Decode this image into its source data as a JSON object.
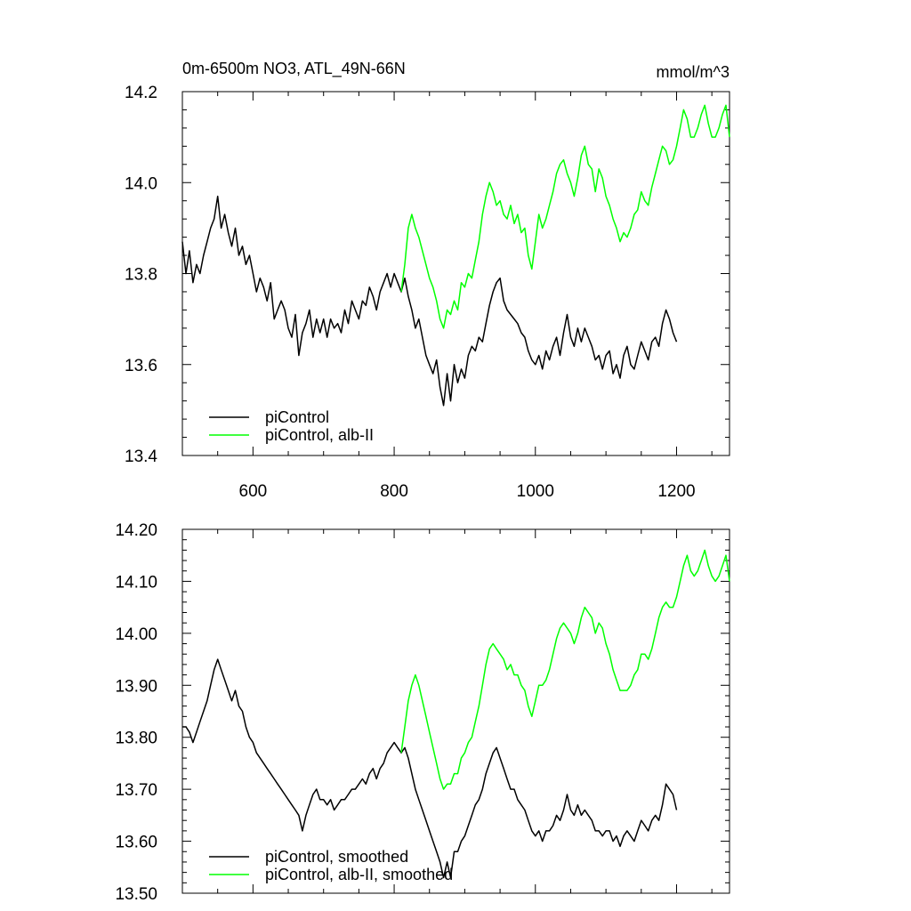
{
  "chart_data": [
    {
      "type": "line",
      "title": "0m-6500m NO3, ATL_49N-66N",
      "units": "mmol/m^3",
      "xlim": [
        500,
        1275
      ],
      "ylim": [
        13.4,
        14.2
      ],
      "xticks": [
        600,
        800,
        1000,
        1200
      ],
      "yticks": [
        13.4,
        13.6,
        13.8,
        14.0,
        14.2
      ],
      "ytick_labels": [
        "13.4",
        "13.6",
        "13.8",
        "14.0",
        "14.2"
      ],
      "grid": false,
      "legend_position": "bottom-left",
      "series": [
        {
          "name": "piControl",
          "color": "#000000",
          "x": [
            500,
            505,
            510,
            515,
            520,
            525,
            530,
            535,
            540,
            545,
            550,
            555,
            560,
            565,
            570,
            575,
            580,
            585,
            590,
            595,
            600,
            605,
            610,
            615,
            620,
            625,
            630,
            635,
            640,
            645,
            650,
            655,
            660,
            665,
            670,
            675,
            680,
            685,
            690,
            695,
            700,
            705,
            710,
            715,
            720,
            725,
            730,
            735,
            740,
            745,
            750,
            755,
            760,
            765,
            770,
            775,
            780,
            785,
            790,
            795,
            800,
            805,
            810,
            815,
            820,
            825,
            830,
            835,
            840,
            845,
            850,
            855,
            860,
            865,
            870,
            875,
            880,
            885,
            890,
            895,
            900,
            905,
            910,
            915,
            920,
            925,
            930,
            935,
            940,
            945,
            950,
            955,
            960,
            965,
            970,
            975,
            980,
            985,
            990,
            995,
            1000,
            1005,
            1010,
            1015,
            1020,
            1025,
            1030,
            1035,
            1040,
            1045,
            1050,
            1055,
            1060,
            1065,
            1070,
            1075,
            1080,
            1085,
            1090,
            1095,
            1100,
            1105,
            1110,
            1115,
            1120,
            1125,
            1130,
            1135,
            1140,
            1145,
            1150,
            1155,
            1160,
            1165,
            1170,
            1175,
            1180,
            1185,
            1190,
            1195,
            1200
          ],
          "y": [
            13.87,
            13.8,
            13.85,
            13.78,
            13.82,
            13.8,
            13.84,
            13.87,
            13.9,
            13.92,
            13.97,
            13.9,
            13.93,
            13.89,
            13.86,
            13.9,
            13.84,
            13.86,
            13.82,
            13.84,
            13.8,
            13.76,
            13.79,
            13.77,
            13.74,
            13.78,
            13.7,
            13.72,
            13.74,
            13.72,
            13.68,
            13.66,
            13.71,
            13.62,
            13.67,
            13.69,
            13.72,
            13.66,
            13.7,
            13.67,
            13.7,
            13.66,
            13.7,
            13.68,
            13.69,
            13.67,
            13.72,
            13.69,
            13.74,
            13.72,
            13.7,
            13.74,
            13.73,
            13.77,
            13.75,
            13.72,
            13.76,
            13.78,
            13.8,
            13.77,
            13.8,
            13.78,
            13.76,
            13.79,
            13.75,
            13.72,
            13.68,
            13.7,
            13.66,
            13.62,
            13.6,
            13.58,
            13.61,
            13.55,
            13.51,
            13.58,
            13.52,
            13.6,
            13.56,
            13.59,
            13.57,
            13.62,
            13.64,
            13.63,
            13.66,
            13.65,
            13.69,
            13.73,
            13.76,
            13.78,
            13.79,
            13.74,
            13.72,
            13.71,
            13.7,
            13.69,
            13.67,
            13.66,
            13.63,
            13.61,
            13.6,
            13.62,
            13.59,
            13.63,
            13.61,
            13.64,
            13.66,
            13.62,
            13.67,
            13.71,
            13.66,
            13.64,
            13.68,
            13.65,
            13.68,
            13.66,
            13.64,
            13.61,
            13.62,
            13.59,
            13.62,
            13.63,
            13.58,
            13.6,
            13.57,
            13.62,
            13.64,
            13.6,
            13.59,
            13.62,
            13.65,
            13.63,
            13.61,
            13.65,
            13.66,
            13.64,
            13.69,
            13.72,
            13.7,
            13.67,
            13.65
          ]
        },
        {
          "name": "piControl, alb-II",
          "color": "#00ff00",
          "x": [
            810,
            815,
            820,
            825,
            830,
            835,
            840,
            845,
            850,
            855,
            860,
            865,
            870,
            875,
            880,
            885,
            890,
            895,
            900,
            905,
            910,
            915,
            920,
            925,
            930,
            935,
            940,
            945,
            950,
            955,
            960,
            965,
            970,
            975,
            980,
            985,
            990,
            995,
            1000,
            1005,
            1010,
            1015,
            1020,
            1025,
            1030,
            1035,
            1040,
            1045,
            1050,
            1055,
            1060,
            1065,
            1070,
            1075,
            1080,
            1085,
            1090,
            1095,
            1100,
            1105,
            1110,
            1115,
            1120,
            1125,
            1130,
            1135,
            1140,
            1145,
            1150,
            1155,
            1160,
            1165,
            1170,
            1175,
            1180,
            1185,
            1190,
            1195,
            1200,
            1205,
            1210,
            1215,
            1220,
            1225,
            1230,
            1235,
            1240,
            1245,
            1250,
            1255,
            1260,
            1265,
            1270,
            1275
          ],
          "y": [
            13.76,
            13.82,
            13.9,
            13.93,
            13.9,
            13.88,
            13.85,
            13.82,
            13.79,
            13.77,
            13.74,
            13.7,
            13.68,
            13.72,
            13.71,
            13.74,
            13.72,
            13.78,
            13.77,
            13.8,
            13.79,
            13.83,
            13.87,
            13.93,
            13.97,
            14.0,
            13.98,
            13.95,
            13.96,
            13.93,
            13.92,
            13.95,
            13.91,
            13.93,
            13.89,
            13.9,
            13.84,
            13.81,
            13.87,
            13.93,
            13.9,
            13.92,
            13.95,
            13.98,
            14.02,
            14.04,
            14.05,
            14.02,
            14.0,
            13.97,
            14.01,
            14.06,
            14.08,
            14.04,
            14.03,
            13.98,
            14.03,
            14.01,
            13.97,
            13.95,
            13.92,
            13.9,
            13.87,
            13.89,
            13.88,
            13.9,
            13.93,
            13.94,
            13.98,
            13.96,
            13.95,
            13.99,
            14.02,
            14.05,
            14.08,
            14.07,
            14.04,
            14.05,
            14.08,
            14.12,
            14.16,
            14.14,
            14.1,
            14.1,
            14.12,
            14.15,
            14.17,
            14.13,
            14.1,
            14.1,
            14.12,
            14.15,
            14.17,
            14.1
          ]
        }
      ]
    },
    {
      "type": "line",
      "xlim": [
        500,
        1275
      ],
      "ylim": [
        13.5,
        14.2
      ],
      "xticks": [
        600,
        800,
        1000,
        1200
      ],
      "yticks": [
        13.5,
        13.6,
        13.7,
        13.8,
        13.9,
        14.0,
        14.1,
        14.2
      ],
      "ytick_labels": [
        "13.50",
        "13.60",
        "13.70",
        "13.80",
        "13.90",
        "14.00",
        "14.10",
        "14.20"
      ],
      "grid": false,
      "legend_position": "bottom-left",
      "series": [
        {
          "name": "piControl, smoothed",
          "color": "#000000",
          "x": [
            500,
            505,
            510,
            515,
            520,
            525,
            530,
            535,
            540,
            545,
            550,
            555,
            560,
            565,
            570,
            575,
            580,
            585,
            590,
            595,
            600,
            605,
            610,
            615,
            620,
            625,
            630,
            635,
            640,
            645,
            650,
            655,
            660,
            665,
            670,
            675,
            680,
            685,
            690,
            695,
            700,
            705,
            710,
            715,
            720,
            725,
            730,
            735,
            740,
            745,
            750,
            755,
            760,
            765,
            770,
            775,
            780,
            785,
            790,
            795,
            800,
            805,
            810,
            815,
            820,
            825,
            830,
            835,
            840,
            845,
            850,
            855,
            860,
            865,
            870,
            875,
            880,
            885,
            890,
            895,
            900,
            905,
            910,
            915,
            920,
            925,
            930,
            935,
            940,
            945,
            950,
            955,
            960,
            965,
            970,
            975,
            980,
            985,
            990,
            995,
            1000,
            1005,
            1010,
            1015,
            1020,
            1025,
            1030,
            1035,
            1040,
            1045,
            1050,
            1055,
            1060,
            1065,
            1070,
            1075,
            1080,
            1085,
            1090,
            1095,
            1100,
            1105,
            1110,
            1115,
            1120,
            1125,
            1130,
            1135,
            1140,
            1145,
            1150,
            1155,
            1160,
            1165,
            1170,
            1175,
            1180,
            1185,
            1190,
            1195,
            1200
          ],
          "y": [
            13.82,
            13.82,
            13.81,
            13.79,
            13.81,
            13.83,
            13.85,
            13.87,
            13.9,
            13.93,
            13.95,
            13.93,
            13.91,
            13.89,
            13.87,
            13.89,
            13.86,
            13.85,
            13.82,
            13.8,
            13.79,
            13.77,
            13.76,
            13.75,
            13.74,
            13.73,
            13.72,
            13.71,
            13.7,
            13.69,
            13.68,
            13.67,
            13.66,
            13.65,
            13.62,
            13.65,
            13.67,
            13.69,
            13.7,
            13.68,
            13.68,
            13.67,
            13.68,
            13.66,
            13.67,
            13.68,
            13.68,
            13.69,
            13.7,
            13.7,
            13.71,
            13.72,
            13.71,
            13.73,
            13.74,
            13.72,
            13.74,
            13.75,
            13.77,
            13.78,
            13.79,
            13.78,
            13.77,
            13.78,
            13.76,
            13.73,
            13.7,
            13.68,
            13.66,
            13.64,
            13.62,
            13.6,
            13.58,
            13.56,
            13.53,
            13.56,
            13.53,
            13.58,
            13.58,
            13.6,
            13.61,
            13.63,
            13.65,
            13.67,
            13.68,
            13.7,
            13.73,
            13.75,
            13.77,
            13.78,
            13.76,
            13.74,
            13.72,
            13.7,
            13.7,
            13.68,
            13.67,
            13.66,
            13.64,
            13.62,
            13.61,
            13.62,
            13.6,
            13.62,
            13.62,
            13.63,
            13.65,
            13.64,
            13.66,
            13.69,
            13.66,
            13.65,
            13.67,
            13.65,
            13.66,
            13.65,
            13.64,
            13.62,
            13.62,
            13.61,
            13.62,
            13.62,
            13.6,
            13.61,
            13.59,
            13.61,
            13.62,
            13.61,
            13.6,
            13.62,
            13.64,
            13.63,
            13.62,
            13.64,
            13.65,
            13.64,
            13.67,
            13.71,
            13.7,
            13.69,
            13.66
          ]
        },
        {
          "name": "piControl, alb-II, smoothed",
          "color": "#00ff00",
          "x": [
            810,
            815,
            820,
            825,
            830,
            835,
            840,
            845,
            850,
            855,
            860,
            865,
            870,
            875,
            880,
            885,
            890,
            895,
            900,
            905,
            910,
            915,
            920,
            925,
            930,
            935,
            940,
            945,
            950,
            955,
            960,
            965,
            970,
            975,
            980,
            985,
            990,
            995,
            1000,
            1005,
            1010,
            1015,
            1020,
            1025,
            1030,
            1035,
            1040,
            1045,
            1050,
            1055,
            1060,
            1065,
            1070,
            1075,
            1080,
            1085,
            1090,
            1095,
            1100,
            1105,
            1110,
            1115,
            1120,
            1125,
            1130,
            1135,
            1140,
            1145,
            1150,
            1155,
            1160,
            1165,
            1170,
            1175,
            1180,
            1185,
            1190,
            1195,
            1200,
            1205,
            1210,
            1215,
            1220,
            1225,
            1230,
            1235,
            1240,
            1245,
            1250,
            1255,
            1260,
            1265,
            1270,
            1275
          ],
          "y": [
            13.77,
            13.82,
            13.87,
            13.9,
            13.92,
            13.9,
            13.87,
            13.84,
            13.81,
            13.78,
            13.75,
            13.72,
            13.7,
            13.71,
            13.71,
            13.73,
            13.73,
            13.76,
            13.77,
            13.79,
            13.8,
            13.83,
            13.86,
            13.9,
            13.94,
            13.97,
            13.98,
            13.97,
            13.96,
            13.95,
            13.93,
            13.94,
            13.92,
            13.92,
            13.9,
            13.89,
            13.86,
            13.84,
            13.87,
            13.9,
            13.9,
            13.91,
            13.93,
            13.96,
            13.99,
            14.01,
            14.02,
            14.01,
            14.0,
            13.98,
            14.0,
            14.03,
            14.05,
            14.04,
            14.03,
            14.0,
            14.02,
            14.01,
            13.98,
            13.96,
            13.93,
            13.91,
            13.89,
            13.89,
            13.89,
            13.9,
            13.92,
            13.93,
            13.96,
            13.96,
            13.95,
            13.97,
            14.0,
            14.03,
            14.05,
            14.06,
            14.05,
            14.05,
            14.07,
            14.1,
            14.13,
            14.15,
            14.12,
            14.11,
            14.12,
            14.14,
            14.16,
            14.13,
            14.11,
            14.1,
            14.11,
            14.13,
            14.15,
            14.1
          ]
        }
      ]
    }
  ]
}
